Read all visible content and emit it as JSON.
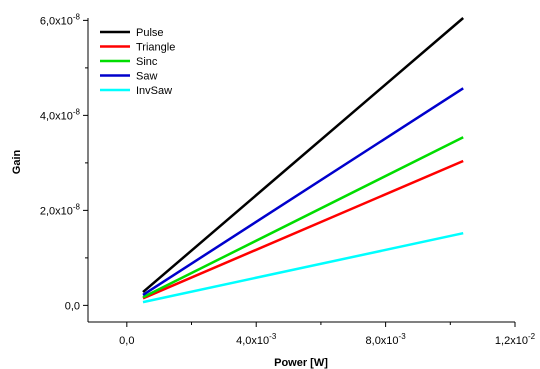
{
  "chart_data": {
    "type": "line",
    "xlabel": "Power [W]",
    "ylabel": "Gain",
    "xlim": [
      -0.0012,
      0.012
    ],
    "ylim": [
      -3.5e-09,
      6.05e-08
    ],
    "x_ticks": [
      {
        "value": 0.0,
        "mantissa": "0,0",
        "exp": ""
      },
      {
        "value": 0.004,
        "mantissa": "4,0x10",
        "exp": "-3"
      },
      {
        "value": 0.008,
        "mantissa": "8,0x10",
        "exp": "-3"
      },
      {
        "value": 0.012,
        "mantissa": "1,2x10",
        "exp": "-2"
      }
    ],
    "y_ticks": [
      {
        "value": 0.0,
        "mantissa": "0,0",
        "exp": ""
      },
      {
        "value": 2e-08,
        "mantissa": "2,0x10",
        "exp": "-8"
      },
      {
        "value": 4e-08,
        "mantissa": "4,0x10",
        "exp": "-8"
      },
      {
        "value": 6e-08,
        "mantissa": "6,0x10",
        "exp": "-8"
      }
    ],
    "legend_position": "top-left",
    "series": [
      {
        "name": "Pulse",
        "color": "#000000",
        "x": [
          0.0005,
          0.0104
        ],
        "y": [
          2.8e-09,
          6.05e-08
        ]
      },
      {
        "name": "Triangle",
        "color": "#ff0000",
        "x": [
          0.0005,
          0.0104
        ],
        "y": [
          1.5e-09,
          3.04e-08
        ]
      },
      {
        "name": "Sinc",
        "color": "#00dd00",
        "x": [
          0.0005,
          0.0104
        ],
        "y": [
          1.7e-09,
          3.54e-08
        ]
      },
      {
        "name": "Saw",
        "color": "#0000cc",
        "x": [
          0.0005,
          0.0104
        ],
        "y": [
          2.2e-09,
          4.57e-08
        ]
      },
      {
        "name": "InvSaw",
        "color": "#00ffff",
        "x": [
          0.0005,
          0.0104
        ],
        "y": [
          7e-10,
          1.52e-08
        ]
      }
    ]
  }
}
